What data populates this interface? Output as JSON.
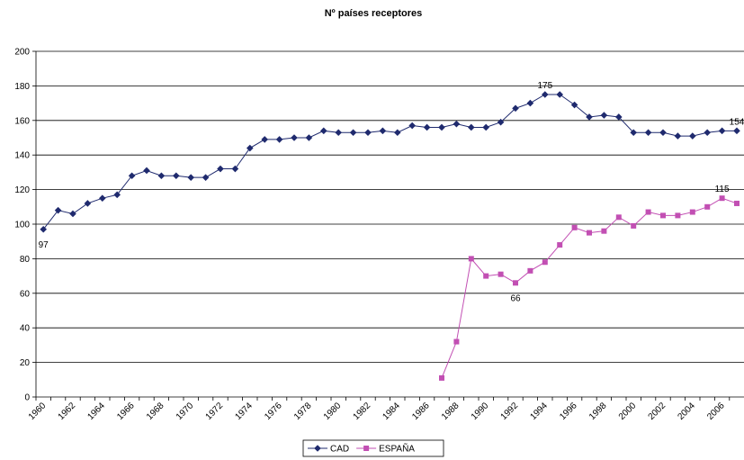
{
  "chart_data": {
    "type": "line",
    "title": "Nº países receptores",
    "categories": [
      "1960",
      null,
      "1962",
      null,
      "1964",
      null,
      "1966",
      null,
      "1968",
      null,
      "1970",
      null,
      "1972",
      null,
      "1974",
      null,
      "1976",
      null,
      "1978",
      null,
      "1980",
      null,
      "1982",
      null,
      "1984",
      null,
      "1986",
      null,
      "1988",
      null,
      "1990",
      null,
      "1992",
      null,
      "1994",
      null,
      "1996",
      null,
      "1998",
      null,
      "2000",
      null,
      "2002",
      null,
      "2004",
      null,
      "2006",
      null
    ],
    "series": [
      {
        "name": "CAD",
        "color": "#1f2a6e",
        "marker": "diamond",
        "values": [
          97,
          108,
          106,
          112,
          115,
          117,
          128,
          131,
          128,
          128,
          127,
          127,
          132,
          132,
          144,
          149,
          149,
          150,
          150,
          154,
          153,
          153,
          153,
          154,
          153,
          157,
          156,
          156,
          158,
          156,
          156,
          159,
          167,
          170,
          175,
          175,
          169,
          162,
          163,
          162,
          153,
          153,
          153,
          151,
          151,
          153,
          154,
          154
        ],
        "value_labels": [
          "97",
          null,
          null,
          null,
          null,
          null,
          null,
          null,
          null,
          null,
          null,
          null,
          null,
          null,
          null,
          null,
          null,
          null,
          null,
          null,
          null,
          null,
          null,
          null,
          null,
          null,
          null,
          null,
          null,
          null,
          null,
          null,
          null,
          null,
          "175",
          null,
          null,
          null,
          null,
          null,
          null,
          null,
          null,
          null,
          null,
          null,
          null,
          "154"
        ]
      },
      {
        "name": "ESPAÑA",
        "color": "#c24fb3",
        "marker": "square",
        "values": [
          null,
          null,
          null,
          null,
          null,
          null,
          null,
          null,
          null,
          null,
          null,
          null,
          null,
          null,
          null,
          null,
          null,
          null,
          null,
          null,
          null,
          null,
          null,
          null,
          null,
          null,
          null,
          11,
          32,
          80,
          70,
          71,
          66,
          73,
          78,
          88,
          98,
          95,
          96,
          104,
          99,
          107,
          105,
          105,
          107,
          110,
          115,
          112
        ],
        "value_labels": [
          null,
          null,
          null,
          null,
          null,
          null,
          null,
          null,
          null,
          null,
          null,
          null,
          null,
          null,
          null,
          null,
          null,
          null,
          null,
          null,
          null,
          null,
          null,
          null,
          null,
          null,
          null,
          null,
          null,
          null,
          null,
          null,
          "66",
          null,
          null,
          null,
          null,
          null,
          null,
          null,
          null,
          null,
          null,
          null,
          null,
          null,
          "115",
          null
        ]
      }
    ],
    "ylim": [
      0,
      200
    ],
    "yticks": [
      0,
      20,
      40,
      60,
      80,
      100,
      120,
      140,
      160,
      180,
      200
    ],
    "grid": true,
    "legend": "bottom"
  }
}
